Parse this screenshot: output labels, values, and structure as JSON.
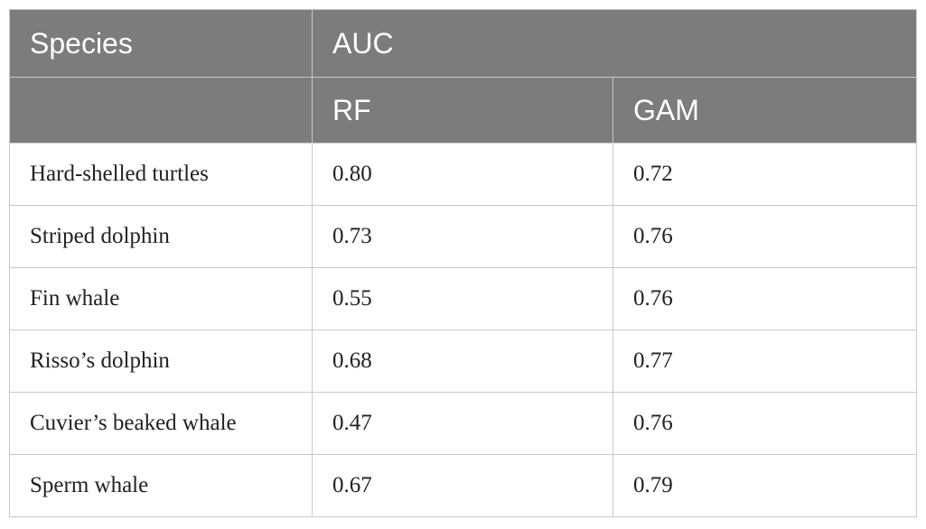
{
  "table": {
    "headers": {
      "species": "Species",
      "metric": "AUC",
      "sub": [
        "RF",
        "GAM"
      ]
    },
    "rows": [
      {
        "species": "Hard-shelled turtles",
        "rf": "0.80",
        "gam": "0.72"
      },
      {
        "species": "Striped dolphin",
        "rf": "0.73",
        "gam": "0.76"
      },
      {
        "species": "Fin whale",
        "rf": "0.55",
        "gam": "0.76"
      },
      {
        "species": "Risso’s dolphin",
        "rf": "0.68",
        "gam": "0.77"
      },
      {
        "species": "Cuvier’s beaked whale",
        "rf": "0.47",
        "gam": "0.76"
      },
      {
        "species": "Sperm whale",
        "rf": "0.67",
        "gam": "0.79"
      }
    ]
  }
}
